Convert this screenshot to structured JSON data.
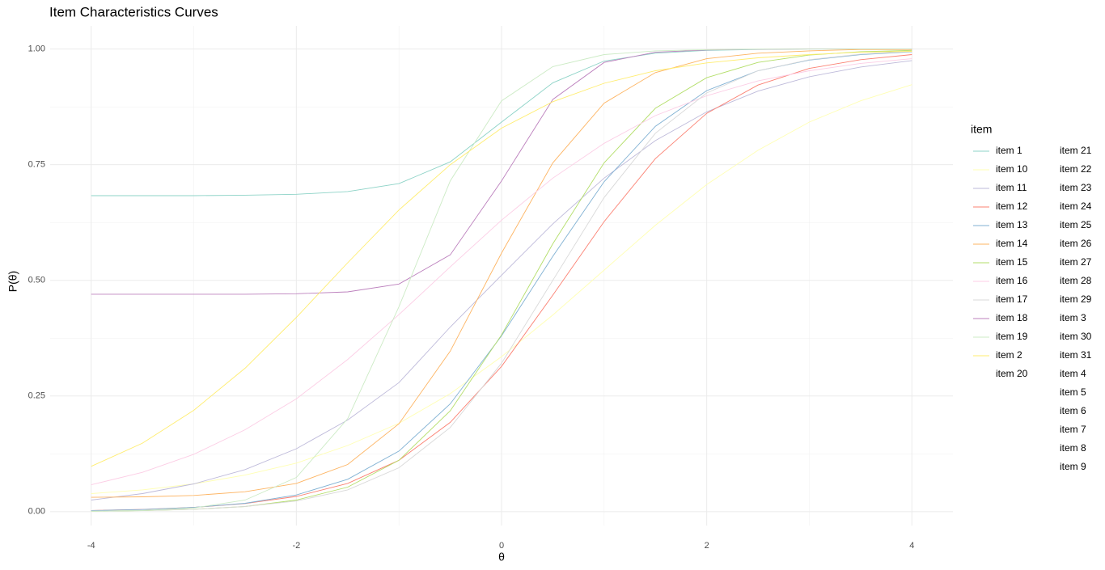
{
  "chart_data": {
    "type": "line",
    "title": "Item Characteristics Curves",
    "x_label": "θ",
    "y_label": "P(θ)",
    "legend_title": "item",
    "x": [
      -4,
      -3.5,
      -3,
      -2.5,
      -2,
      -1.5,
      -1,
      -0.5,
      0,
      0.5,
      1,
      1.5,
      2,
      2.5,
      3,
      3.5,
      4
    ],
    "xlim": [
      -4.4,
      4.4
    ],
    "xticks": [
      -4,
      -2,
      0,
      2,
      4
    ],
    "ylim": [
      -0.03,
      1.05
    ],
    "yticks": [
      {
        "value": 0,
        "label": "0.00"
      },
      {
        "value": 0.25,
        "label": "0.25"
      },
      {
        "value": 0.5,
        "label": "0.50"
      },
      {
        "value": 0.75,
        "label": "0.75"
      },
      {
        "value": 1,
        "label": "1.00"
      }
    ],
    "grid": true,
    "legend_position": "right",
    "series": [
      {
        "name": "item 1",
        "color": "#8dd3c7",
        "values": [
          0.683,
          0.683,
          0.683,
          0.684,
          0.686,
          0.692,
          0.709,
          0.756,
          0.842,
          0.927,
          0.974,
          0.991,
          0.997,
          0.999,
          1.0,
          1.0,
          1.0
        ]
      },
      {
        "name": "item 10",
        "color": "#ffffb3",
        "values": [
          0.039,
          0.047,
          0.06,
          0.079,
          0.105,
          0.143,
          0.191,
          0.255,
          0.335,
          0.425,
          0.522,
          0.619,
          0.707,
          0.781,
          0.842,
          0.888,
          0.923
        ]
      },
      {
        "name": "item 11",
        "color": "#bebada",
        "values": [
          0.025,
          0.039,
          0.06,
          0.091,
          0.136,
          0.198,
          0.279,
          0.399,
          0.511,
          0.622,
          0.721,
          0.802,
          0.864,
          0.909,
          0.94,
          0.961,
          0.975
        ]
      },
      {
        "name": "item 12",
        "color": "#fb8072",
        "values": [
          0.0025,
          0.0048,
          0.0092,
          0.0175,
          0.033,
          0.061,
          0.111,
          0.193,
          0.314,
          0.468,
          0.627,
          0.763,
          0.861,
          0.922,
          0.958,
          0.977,
          0.988
        ]
      },
      {
        "name": "item 13",
        "color": "#80b1d3",
        "values": [
          0.0023,
          0.0046,
          0.0091,
          0.018,
          0.036,
          0.07,
          0.131,
          0.233,
          0.38,
          0.552,
          0.713,
          0.833,
          0.91,
          0.953,
          0.976,
          0.988,
          0.994
        ]
      },
      {
        "name": "item 14",
        "color": "#fdb462",
        "values": [
          0.031,
          0.032,
          0.035,
          0.043,
          0.061,
          0.102,
          0.19,
          0.347,
          0.559,
          0.754,
          0.883,
          0.949,
          0.979,
          0.991,
          0.996,
          0.999,
          0.999
        ]
      },
      {
        "name": "item 15",
        "color": "#b3de69",
        "values": [
          0.001,
          0.0023,
          0.0051,
          0.011,
          0.025,
          0.053,
          0.111,
          0.218,
          0.382,
          0.579,
          0.754,
          0.872,
          0.938,
          0.971,
          0.987,
          0.994,
          0.997
        ]
      },
      {
        "name": "item 16",
        "color": "#fccde5",
        "values": [
          0.058,
          0.085,
          0.124,
          0.177,
          0.244,
          0.329,
          0.426,
          0.529,
          0.63,
          0.721,
          0.796,
          0.856,
          0.899,
          0.931,
          0.953,
          0.969,
          0.979
        ]
      },
      {
        "name": "item 17",
        "color": "#d9d9d9",
        "values": [
          0.0012,
          0.0025,
          0.0052,
          0.011,
          0.023,
          0.047,
          0.095,
          0.182,
          0.321,
          0.5,
          0.679,
          0.818,
          0.905,
          0.953,
          0.977,
          0.989,
          0.995
        ]
      },
      {
        "name": "item 18",
        "color": "#bc80bd",
        "values": [
          0.47,
          0.47,
          0.47,
          0.47,
          0.471,
          0.475,
          0.492,
          0.555,
          0.715,
          0.891,
          0.971,
          0.993,
          0.998,
          0.9995,
          1.0,
          1.0,
          1.0
        ]
      },
      {
        "name": "item 19",
        "color": "#ccebc5",
        "values": [
          0.0008,
          0.0025,
          0.0079,
          0.025,
          0.074,
          0.201,
          0.443,
          0.715,
          0.888,
          0.962,
          0.988,
          0.996,
          0.9987,
          0.9996,
          0.9999,
          1.0,
          1.0
        ]
      },
      {
        "name": "item 2",
        "color": "#ffed6f",
        "values": [
          0.098,
          0.148,
          0.219,
          0.31,
          0.42,
          0.538,
          0.652,
          0.75,
          0.829,
          0.886,
          0.926,
          0.953,
          0.97,
          0.981,
          0.988,
          0.993,
          0.995
        ]
      },
      {
        "name": "item 20"
      },
      {
        "name": "item 21"
      },
      {
        "name": "item 22"
      },
      {
        "name": "item 23"
      },
      {
        "name": "item 24"
      },
      {
        "name": "item 25"
      },
      {
        "name": "item 26"
      },
      {
        "name": "item 27"
      },
      {
        "name": "item 28"
      },
      {
        "name": "item 29"
      },
      {
        "name": "item 3"
      },
      {
        "name": "item 30"
      },
      {
        "name": "item 31"
      },
      {
        "name": "item 4"
      },
      {
        "name": "item 5"
      },
      {
        "name": "item 6"
      },
      {
        "name": "item 7"
      },
      {
        "name": "item 8"
      },
      {
        "name": "item 9"
      }
    ]
  }
}
